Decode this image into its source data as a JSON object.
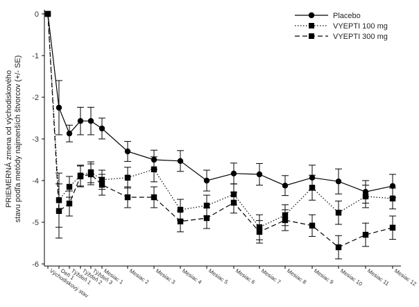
{
  "chart_data": {
    "type": "line",
    "ylabel": "PRIEMERNÁ zmena od východiskového stavu podľa metódy najmenších štvorcov (+/- SE)",
    "ylim": [
      -6,
      0
    ],
    "yticks": [
      0,
      -1,
      -2,
      -3,
      -4,
      -5,
      -6
    ],
    "categories": [
      "Východiskový stav",
      "Deň 1",
      "Týždeň 1",
      "Týždeň 2",
      "Týždeň 3",
      "Mesiac 1",
      "Mesiac 2",
      "Mesiac 3",
      "Mesiac 4",
      "Mesiac 5",
      "Mesiac 6",
      "Mesiac 7",
      "Mesiac 8",
      "Mesiac 9",
      "Mesiac 10",
      "Mesiac 11",
      "Mesiac 12"
    ],
    "series": [
      {
        "name": "Placebo",
        "style": "solid",
        "marker": "circle",
        "values": [
          0,
          -2.25,
          -2.87,
          -2.57,
          -2.57,
          -2.75,
          -3.3,
          -3.5,
          -3.53,
          -4.0,
          -3.83,
          -3.85,
          -4.12,
          -3.93,
          -4.02,
          -4.27,
          -4.13
        ],
        "errors": [
          0,
          0.65,
          0.2,
          0.33,
          0.33,
          0.25,
          0.24,
          0.23,
          0.25,
          0.25,
          0.25,
          0.26,
          0.24,
          0.3,
          0.3,
          0.27,
          0.28
        ]
      },
      {
        "name": "VYEPTI 100 mg",
        "style": "dotted",
        "marker": "square",
        "values": [
          0,
          -4.47,
          -4.15,
          -3.88,
          -3.8,
          -3.98,
          -3.93,
          -3.73,
          -4.7,
          -4.6,
          -4.33,
          -5.12,
          -4.83,
          -4.17,
          -4.77,
          -4.38,
          -4.43
        ],
        "errors": [
          0,
          0.65,
          0.25,
          0.25,
          0.25,
          0.23,
          0.25,
          0.3,
          0.25,
          0.25,
          0.25,
          0.3,
          0.25,
          0.3,
          0.28,
          0.27,
          0.25
        ]
      },
      {
        "name": "VYEPTI 300 mg",
        "style": "dashed",
        "marker": "square",
        "values": [
          0,
          -4.73,
          -4.55,
          -3.9,
          -3.85,
          -4.1,
          -4.4,
          -4.4,
          -4.98,
          -4.9,
          -4.53,
          -5.23,
          -4.95,
          -5.08,
          -5.6,
          -5.3,
          -5.13
        ],
        "errors": [
          0,
          0.65,
          0.3,
          0.25,
          0.25,
          0.25,
          0.25,
          0.25,
          0.25,
          0.25,
          0.25,
          0.27,
          0.25,
          0.26,
          0.28,
          0.28,
          0.28
        ]
      }
    ],
    "legend": {
      "placement": "top-right"
    },
    "grid": false
  }
}
